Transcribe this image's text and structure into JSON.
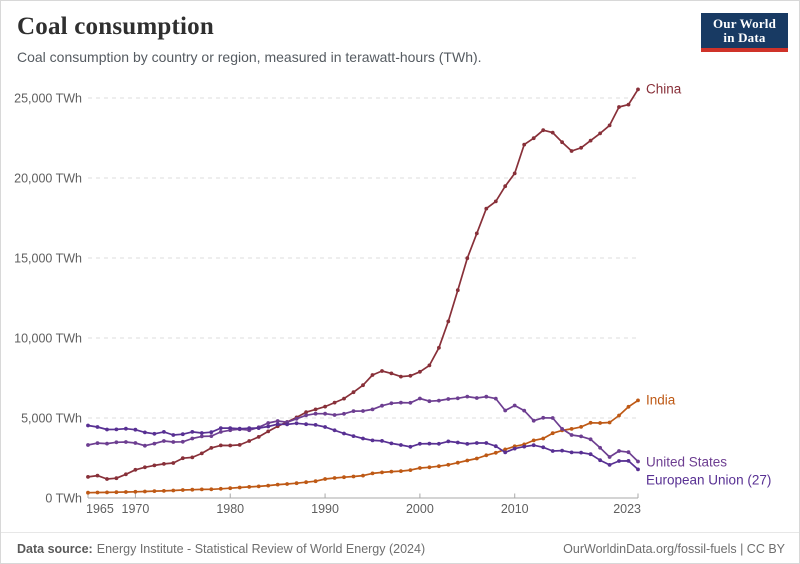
{
  "header": {
    "title": "Coal consumption",
    "subtitle": "Coal consumption by country or region, measured in terawatt-hours (TWh).",
    "logo": {
      "line1": "Our World",
      "line2": "in Data"
    }
  },
  "footer": {
    "source_label": "Data source:",
    "source_text": "Energy Institute - Statistical Review of World Energy (2024)",
    "link": "OurWorldinData.org/fossil-fuels | CC BY"
  },
  "colors": {
    "china": "#883039",
    "india": "#BE5915",
    "united_states": "#6D3E91",
    "european_union": "#583093",
    "grid": "#dcdcdc",
    "axis": "#a8a8a8",
    "tick_text": "#5f5f5f",
    "logo_navy": "#183a63",
    "logo_red": "#cf3229"
  },
  "chart_data": {
    "type": "line",
    "title": "Coal consumption",
    "unit": "TWh",
    "xlabel": "",
    "ylabel": "",
    "xlim": [
      1965,
      2023
    ],
    "ylim": [
      0,
      25600
    ],
    "grid": true,
    "legend_position": "line-end-labels",
    "xticks": [
      1965,
      1970,
      1980,
      1990,
      2000,
      2010,
      2023
    ],
    "xtick_labels": [
      "1965",
      "1970",
      "1980",
      "1990",
      "2000",
      "2010",
      "2023"
    ],
    "yticks": [
      0,
      5000,
      10000,
      15000,
      20000,
      25000
    ],
    "ytick_labels": [
      "0 TWh",
      "5,000 TWh",
      "10,000 TWh",
      "15,000 TWh",
      "20,000 TWh",
      "25,000 TWh"
    ],
    "x": [
      1965,
      1966,
      1967,
      1968,
      1969,
      1970,
      1971,
      1972,
      1973,
      1974,
      1975,
      1976,
      1977,
      1978,
      1979,
      1980,
      1981,
      1982,
      1983,
      1984,
      1985,
      1986,
      1987,
      1988,
      1989,
      1990,
      1991,
      1992,
      1993,
      1994,
      1995,
      1996,
      1997,
      1998,
      1999,
      2000,
      2001,
      2002,
      2003,
      2004,
      2005,
      2006,
      2007,
      2008,
      2009,
      2010,
      2011,
      2012,
      2013,
      2014,
      2015,
      2016,
      2017,
      2018,
      2019,
      2020,
      2021,
      2022,
      2023
    ],
    "series": [
      {
        "name": "China",
        "color": "#883039",
        "label_dy": 0,
        "values": [
          1320,
          1400,
          1190,
          1240,
          1480,
          1760,
          1920,
          2040,
          2130,
          2190,
          2490,
          2540,
          2790,
          3130,
          3290,
          3280,
          3320,
          3560,
          3820,
          4160,
          4490,
          4750,
          5040,
          5360,
          5540,
          5710,
          5960,
          6210,
          6610,
          7050,
          7690,
          7940,
          7790,
          7590,
          7640,
          7890,
          8290,
          9390,
          11040,
          12990,
          14990,
          16540,
          18090,
          18540,
          19490,
          20290,
          22090,
          22490,
          22990,
          22840,
          22240,
          21690,
          21890,
          22340,
          22790,
          23290,
          24440,
          24590,
          25540
        ]
      },
      {
        "name": "India",
        "color": "#BE5915",
        "label_dy": 0,
        "values": [
          333,
          342,
          352,
          362,
          372,
          385,
          406,
          430,
          442,
          466,
          499,
          518,
          535,
          546,
          576,
          610,
          655,
          694,
          728,
          774,
          835,
          878,
          926,
          988,
          1049,
          1190,
          1251,
          1298,
          1345,
          1400,
          1537,
          1598,
          1647,
          1682,
          1742,
          1878,
          1918,
          1988,
          2072,
          2206,
          2344,
          2470,
          2668,
          2822,
          3039,
          3230,
          3352,
          3601,
          3721,
          4049,
          4228,
          4316,
          4443,
          4701,
          4690,
          4721,
          5159,
          5697,
          6103
        ]
      },
      {
        "name": "United States",
        "color": "#6D3E91",
        "label_dy": 1,
        "values": [
          3310,
          3430,
          3400,
          3480,
          3500,
          3440,
          3270,
          3400,
          3560,
          3500,
          3510,
          3720,
          3850,
          3870,
          4130,
          4240,
          4300,
          4240,
          4420,
          4690,
          4810,
          4740,
          4950,
          5170,
          5270,
          5270,
          5190,
          5260,
          5430,
          5440,
          5540,
          5770,
          5920,
          5960,
          5950,
          6220,
          6050,
          6090,
          6190,
          6230,
          6340,
          6250,
          6330,
          6210,
          5470,
          5780,
          5460,
          4830,
          5010,
          5000,
          4320,
          3940,
          3850,
          3670,
          3140,
          2560,
          2940,
          2860,
          2280
        ]
      },
      {
        "name": "European Union (27)",
        "color": "#583093",
        "label_dy": 11,
        "values": [
          4530,
          4440,
          4280,
          4290,
          4330,
          4270,
          4100,
          4010,
          4130,
          3940,
          3990,
          4130,
          4060,
          4110,
          4370,
          4370,
          4330,
          4360,
          4370,
          4470,
          4610,
          4600,
          4670,
          4610,
          4570,
          4440,
          4230,
          4030,
          3870,
          3720,
          3600,
          3570,
          3410,
          3310,
          3200,
          3390,
          3400,
          3390,
          3540,
          3470,
          3380,
          3440,
          3440,
          3240,
          2850,
          3090,
          3210,
          3300,
          3170,
          2940,
          2960,
          2850,
          2840,
          2740,
          2360,
          2070,
          2310,
          2320,
          1790
        ]
      }
    ]
  }
}
